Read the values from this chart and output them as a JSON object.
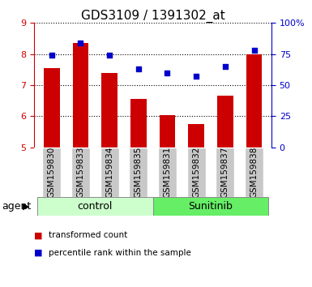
{
  "title": "GDS3109 / 1391302_at",
  "categories": [
    "GSM159830",
    "GSM159833",
    "GSM159834",
    "GSM159835",
    "GSM159831",
    "GSM159832",
    "GSM159837",
    "GSM159838"
  ],
  "bar_values": [
    7.55,
    8.35,
    7.38,
    6.55,
    6.05,
    5.75,
    6.65,
    7.98
  ],
  "scatter_percentile": [
    74,
    84,
    74,
    63,
    60,
    57,
    65,
    78
  ],
  "bar_color": "#cc0000",
  "scatter_color": "#0000cc",
  "ylim_left": [
    5,
    9
  ],
  "ylim_right": [
    0,
    100
  ],
  "yticks_left": [
    5,
    6,
    7,
    8,
    9
  ],
  "yticks_right": [
    0,
    25,
    50,
    75,
    100
  ],
  "ytick_labels_right": [
    "0",
    "25",
    "50",
    "75",
    "100%"
  ],
  "control_label": "control",
  "sunitinib_label": "Sunitinib",
  "agent_label": "agent",
  "legend_bar": "transformed count",
  "legend_scatter": "percentile rank within the sample",
  "control_color": "#ccffcc",
  "sunitinib_color": "#66ee66",
  "xlabel_area_bg": "#c8c8c8",
  "bar_width": 0.55,
  "title_fontsize": 11,
  "tick_fontsize": 8,
  "label_fontsize": 7.5,
  "agent_fontsize": 9
}
